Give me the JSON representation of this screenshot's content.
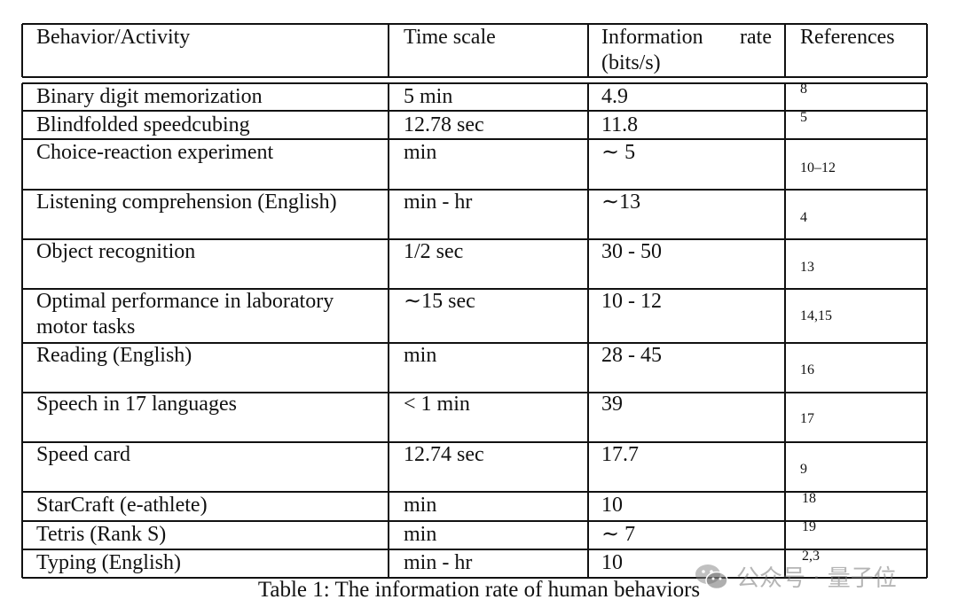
{
  "table": {
    "headers": [
      "Behavior/Activity",
      "Time scale",
      "Information rate (bits/s)",
      "References"
    ],
    "rows": [
      {
        "activity": "Binary digit memorization",
        "time": "5 min",
        "rate": "4.9",
        "ref": "8"
      },
      {
        "activity": "Blindfolded speedcubing",
        "time": "12.78 sec",
        "rate": "11.8",
        "ref": "5"
      },
      {
        "activity": "Choice-reaction experiment",
        "time": "min",
        "rate": "∼ 5",
        "ref": "10–12"
      },
      {
        "activity": "Listening comprehension (English)",
        "time": "min - hr",
        "rate": "∼13",
        "ref": "4"
      },
      {
        "activity": "Object recognition",
        "time": "1/2 sec",
        "rate": "30 - 50",
        "ref": "13"
      },
      {
        "activity": "Optimal performance in laboratory motor tasks",
        "activity_lines": [
          "Optimal performance in laboratory",
          "motor tasks"
        ],
        "time": "∼15 sec",
        "rate": "10 - 12",
        "ref": "14,15"
      },
      {
        "activity": "Reading (English)",
        "time": "min",
        "rate": "28 - 45",
        "ref": "16"
      },
      {
        "activity": "Speech in 17 languages",
        "time": "< 1 min",
        "rate": "39",
        "ref": "17"
      },
      {
        "activity": "Speed card",
        "time": "12.74 sec",
        "rate": "17.7",
        "ref": "9"
      },
      {
        "activity": "StarCraft (e-athlete)",
        "time": "min",
        "rate": "10",
        "ref": "18"
      },
      {
        "activity": "Tetris (Rank S)",
        "time": "min",
        "rate": "∼ 7",
        "ref": "19"
      },
      {
        "activity": "Typing (English)",
        "time": "min - hr",
        "rate": "10",
        "ref": "2,3"
      }
    ]
  },
  "caption": "Table 1: The information rate of human behaviors",
  "watermark": {
    "text": "公众号 · 量子位",
    "icon": "wechat-icon"
  }
}
